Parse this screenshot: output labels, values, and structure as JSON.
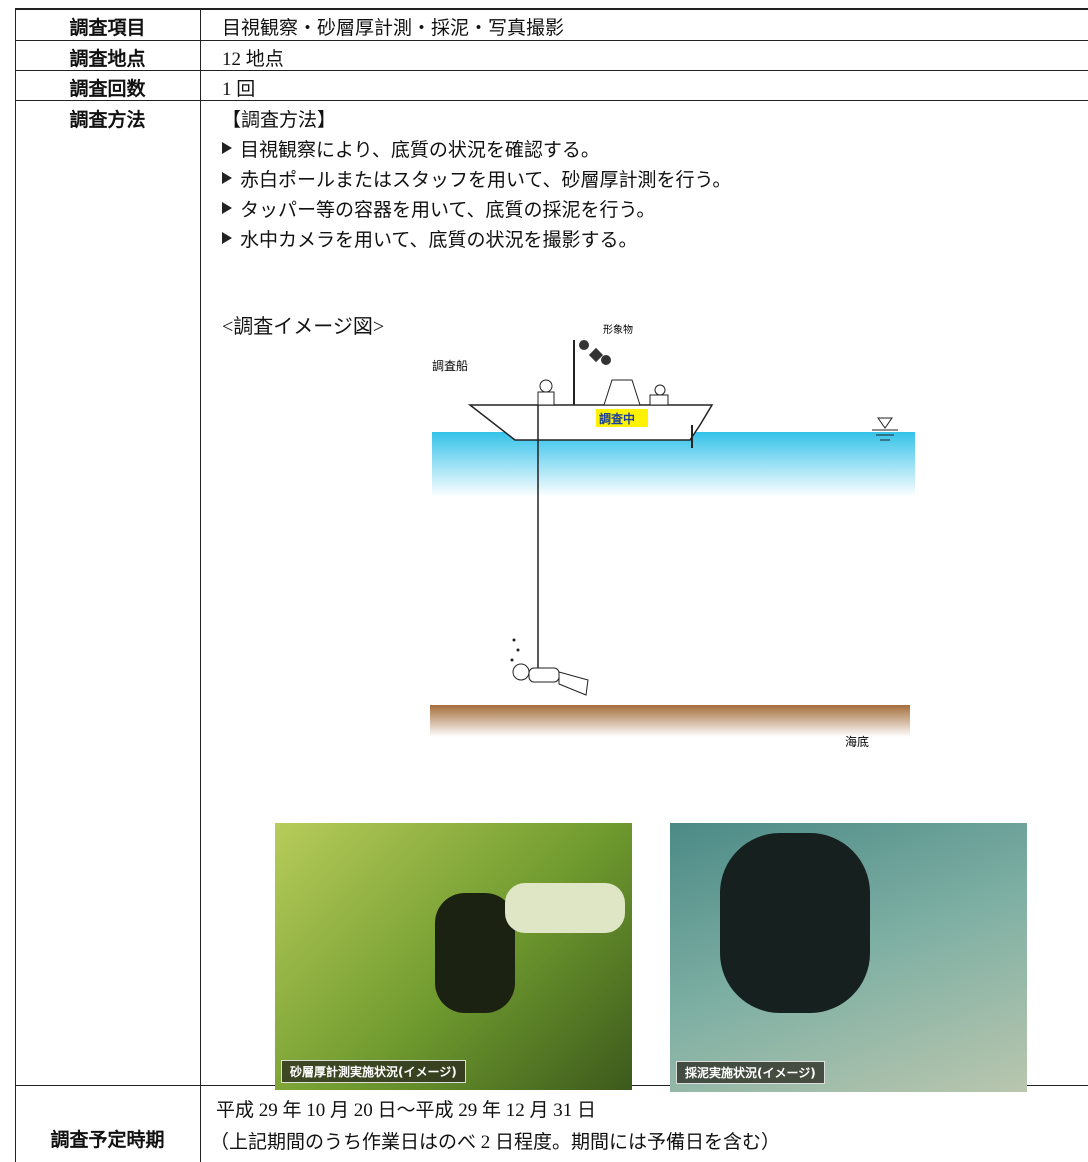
{
  "table": {
    "rows": [
      {
        "label": "調査項目",
        "value": "目視観察・砂層厚計測・採泥・写真撮影"
      },
      {
        "label": "調査地点",
        "value": "12 地点"
      },
      {
        "label": "調査回数",
        "value": "1 回"
      },
      {
        "label": "調査方法",
        "heading": "【調査方法】",
        "bullets": [
          "目視観察により、底質の状況を確認する。",
          "赤白ポールまたはスタッフを用いて、砂層厚計測を行う。",
          "タッパー等の容器を用いて、底質の採泥を行う。",
          "水中カメラを用いて、底質の状況を撮影する。"
        ],
        "figure": {
          "title": "<調査イメージ図>",
          "labels": {
            "marker": "形象物",
            "boat": "調査船",
            "status": "調査中",
            "seabed": "海底"
          }
        },
        "photos": [
          {
            "caption": "砂層厚計測実施状況(イメージ)"
          },
          {
            "caption": "採泥実施状況(イメージ)"
          }
        ]
      },
      {
        "label": "調査予定時期",
        "lines": [
          "平成 29 年 10 月 20 日～平成 29 年 12 月 31 日",
          "（上記期間のうち作業日はのべ 2 日程度。期間には予備日を含む）"
        ]
      }
    ]
  }
}
